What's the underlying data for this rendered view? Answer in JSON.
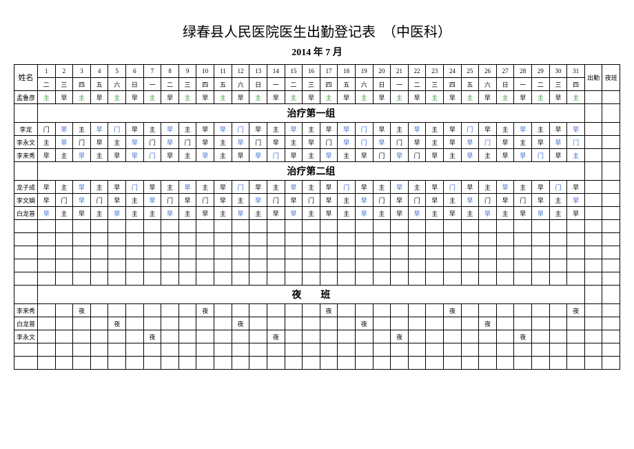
{
  "title": "绿春县人民医院医生出勤登记表　（中医科）",
  "subtitle": "2014 年 7 月",
  "nameHeader": "姓名",
  "cols": {
    "chuqin": "出勤",
    "yeban": "夜班"
  },
  "days": [
    "1",
    "2",
    "3",
    "4",
    "5",
    "6",
    "7",
    "8",
    "9",
    "10",
    "11",
    "12",
    "13",
    "14",
    "15",
    "16",
    "17",
    "18",
    "19",
    "20",
    "21",
    "22",
    "23",
    "24",
    "25",
    "26",
    "27",
    "28",
    "29",
    "30",
    "31"
  ],
  "weekdays": [
    "二",
    "三",
    "四",
    "五",
    "六",
    "日",
    "一",
    "二",
    "三",
    "四",
    "五",
    "六",
    "日",
    "一",
    "二",
    "三",
    "四",
    "五",
    "六",
    "日",
    "一",
    "二",
    "三",
    "四",
    "五",
    "六",
    "日",
    "一",
    "二",
    "三",
    "四"
  ],
  "sections": {
    "group1": "治疗第一组",
    "group2": "治疗第二组",
    "night": "夜　　班"
  },
  "rows": {
    "mengluyan": {
      "name": "孟鲁彦",
      "cells": [
        {
          "t": "主",
          "c": "green"
        },
        {
          "t": "早"
        },
        {
          "t": "主",
          "c": "green"
        },
        {
          "t": "早"
        },
        {
          "t": "主",
          "c": "green"
        },
        {
          "t": "早"
        },
        {
          "t": "主",
          "c": "green"
        },
        {
          "t": "早"
        },
        {
          "t": "主",
          "c": "green"
        },
        {
          "t": "早"
        },
        {
          "t": "主",
          "c": "green"
        },
        {
          "t": "早"
        },
        {
          "t": "主",
          "c": "green"
        },
        {
          "t": "早"
        },
        {
          "t": "主",
          "c": "green"
        },
        {
          "t": "早"
        },
        {
          "t": "主",
          "c": "green"
        },
        {
          "t": "早"
        },
        {
          "t": "主",
          "c": "green"
        },
        {
          "t": "早"
        },
        {
          "t": "主",
          "c": "green"
        },
        {
          "t": "早"
        },
        {
          "t": "主",
          "c": "green"
        },
        {
          "t": "早"
        },
        {
          "t": "主",
          "c": "green"
        },
        {
          "t": "早"
        },
        {
          "t": "主",
          "c": "green"
        },
        {
          "t": "早"
        },
        {
          "t": "主",
          "c": "green"
        },
        {
          "t": "早"
        },
        {
          "t": "主",
          "c": "green"
        }
      ]
    },
    "lilong": {
      "name": "李龙",
      "cells": [
        {
          "t": "门"
        },
        {
          "t": "早",
          "c": "blue"
        },
        {
          "t": "主"
        },
        {
          "t": "早",
          "c": "blue"
        },
        {
          "t": "门",
          "c": "blue"
        },
        {
          "t": "早"
        },
        {
          "t": "主"
        },
        {
          "t": "早",
          "c": "blue"
        },
        {
          "t": "主"
        },
        {
          "t": "早"
        },
        {
          "t": "早",
          "c": "blue"
        },
        {
          "t": "门",
          "c": "blue"
        },
        {
          "t": "早"
        },
        {
          "t": "主"
        },
        {
          "t": "早",
          "c": "blue"
        },
        {
          "t": "主"
        },
        {
          "t": "早"
        },
        {
          "t": "早",
          "c": "blue"
        },
        {
          "t": "门",
          "c": "blue"
        },
        {
          "t": "早"
        },
        {
          "t": "主"
        },
        {
          "t": "早",
          "c": "blue"
        },
        {
          "t": "主"
        },
        {
          "t": "早"
        },
        {
          "t": "门",
          "c": "blue"
        },
        {
          "t": "早"
        },
        {
          "t": "主"
        },
        {
          "t": "早",
          "c": "blue"
        },
        {
          "t": "主"
        },
        {
          "t": "早"
        },
        {
          "t": "早",
          "c": "blue"
        }
      ]
    },
    "liyongwen": {
      "name": "李永文",
      "cells": [
        {
          "t": "主"
        },
        {
          "t": "早",
          "c": "blue"
        },
        {
          "t": "门"
        },
        {
          "t": "早"
        },
        {
          "t": "主"
        },
        {
          "t": "早",
          "c": "blue"
        },
        {
          "t": "门"
        },
        {
          "t": "早",
          "c": "blue"
        },
        {
          "t": "门"
        },
        {
          "t": "早"
        },
        {
          "t": "主"
        },
        {
          "t": "早",
          "c": "blue"
        },
        {
          "t": "门"
        },
        {
          "t": "早"
        },
        {
          "t": "主"
        },
        {
          "t": "早"
        },
        {
          "t": "门"
        },
        {
          "t": "早",
          "c": "blue"
        },
        {
          "t": "门",
          "c": "blue"
        },
        {
          "t": "早",
          "c": "blue"
        },
        {
          "t": "门"
        },
        {
          "t": "早"
        },
        {
          "t": "主"
        },
        {
          "t": "早"
        },
        {
          "t": "早",
          "c": "blue"
        },
        {
          "t": "门",
          "c": "blue"
        },
        {
          "t": "早"
        },
        {
          "t": "主"
        },
        {
          "t": "早"
        },
        {
          "t": "早",
          "c": "blue"
        },
        {
          "t": "门",
          "c": "blue"
        }
      ]
    },
    "lilaixiu": {
      "name": "李来秀",
      "cells": [
        {
          "t": "早"
        },
        {
          "t": "主"
        },
        {
          "t": "早",
          "c": "blue"
        },
        {
          "t": "主"
        },
        {
          "t": "早"
        },
        {
          "t": "早",
          "c": "blue"
        },
        {
          "t": "门",
          "c": "blue"
        },
        {
          "t": "早"
        },
        {
          "t": "主"
        },
        {
          "t": "早",
          "c": "blue"
        },
        {
          "t": "主"
        },
        {
          "t": "早"
        },
        {
          "t": "早",
          "c": "blue"
        },
        {
          "t": "门",
          "c": "blue"
        },
        {
          "t": "早"
        },
        {
          "t": "主"
        },
        {
          "t": "早",
          "c": "blue"
        },
        {
          "t": "主"
        },
        {
          "t": "早"
        },
        {
          "t": "门"
        },
        {
          "t": "早",
          "c": "blue"
        },
        {
          "t": "门"
        },
        {
          "t": "早"
        },
        {
          "t": "主"
        },
        {
          "t": "早",
          "c": "blue"
        },
        {
          "t": "主"
        },
        {
          "t": "早"
        },
        {
          "t": "早",
          "c": "blue"
        },
        {
          "t": "门",
          "c": "blue"
        },
        {
          "t": "早"
        },
        {
          "t": "主",
          "c": "blue"
        }
      ]
    },
    "longzicheng": {
      "name": "龙子成",
      "cells": [
        {
          "t": "早"
        },
        {
          "t": "主"
        },
        {
          "t": "早",
          "c": "blue"
        },
        {
          "t": "主"
        },
        {
          "t": "早"
        },
        {
          "t": "门",
          "c": "blue"
        },
        {
          "t": "早"
        },
        {
          "t": "主"
        },
        {
          "t": "早",
          "c": "blue"
        },
        {
          "t": "主"
        },
        {
          "t": "早"
        },
        {
          "t": "门",
          "c": "blue"
        },
        {
          "t": "早"
        },
        {
          "t": "主"
        },
        {
          "t": "早",
          "c": "blue"
        },
        {
          "t": "主"
        },
        {
          "t": "早"
        },
        {
          "t": "门",
          "c": "blue"
        },
        {
          "t": "早"
        },
        {
          "t": "主"
        },
        {
          "t": "早",
          "c": "blue"
        },
        {
          "t": "主"
        },
        {
          "t": "早"
        },
        {
          "t": "门",
          "c": "blue"
        },
        {
          "t": "早"
        },
        {
          "t": "主"
        },
        {
          "t": "早",
          "c": "blue"
        },
        {
          "t": "主"
        },
        {
          "t": "早"
        },
        {
          "t": "门",
          "c": "blue"
        },
        {
          "t": "早"
        }
      ]
    },
    "liwenjuan": {
      "name": "李文娟",
      "cells": [
        {
          "t": "早"
        },
        {
          "t": "门"
        },
        {
          "t": "早",
          "c": "blue"
        },
        {
          "t": "门"
        },
        {
          "t": "早"
        },
        {
          "t": "主"
        },
        {
          "t": "早",
          "c": "blue"
        },
        {
          "t": "门"
        },
        {
          "t": "早"
        },
        {
          "t": "门"
        },
        {
          "t": "早"
        },
        {
          "t": "主"
        },
        {
          "t": "早",
          "c": "blue"
        },
        {
          "t": "门"
        },
        {
          "t": "早"
        },
        {
          "t": "门"
        },
        {
          "t": "早"
        },
        {
          "t": "主"
        },
        {
          "t": "早",
          "c": "blue"
        },
        {
          "t": "门"
        },
        {
          "t": "早"
        },
        {
          "t": "门"
        },
        {
          "t": "早"
        },
        {
          "t": "主"
        },
        {
          "t": "早",
          "c": "blue"
        },
        {
          "t": "门"
        },
        {
          "t": "早"
        },
        {
          "t": "门"
        },
        {
          "t": "早"
        },
        {
          "t": "主"
        },
        {
          "t": "早",
          "c": "blue"
        }
      ]
    },
    "bailongpu": {
      "name": "白龙普",
      "cells": [
        {
          "t": "早",
          "c": "blue"
        },
        {
          "t": "主"
        },
        {
          "t": "早"
        },
        {
          "t": "主"
        },
        {
          "t": "早",
          "c": "blue"
        },
        {
          "t": "主"
        },
        {
          "t": "主"
        },
        {
          "t": "早",
          "c": "blue"
        },
        {
          "t": "主"
        },
        {
          "t": "早"
        },
        {
          "t": "主"
        },
        {
          "t": "早",
          "c": "blue"
        },
        {
          "t": "主"
        },
        {
          "t": "早"
        },
        {
          "t": "早",
          "c": "blue"
        },
        {
          "t": "主"
        },
        {
          "t": "早"
        },
        {
          "t": "主"
        },
        {
          "t": "早",
          "c": "blue"
        },
        {
          "t": "主"
        },
        {
          "t": "早"
        },
        {
          "t": "早",
          "c": "blue"
        },
        {
          "t": "主"
        },
        {
          "t": "早"
        },
        {
          "t": "主"
        },
        {
          "t": "早",
          "c": "blue"
        },
        {
          "t": "主"
        },
        {
          "t": "早"
        },
        {
          "t": "早",
          "c": "blue"
        },
        {
          "t": "主"
        },
        {
          "t": "早"
        }
      ]
    },
    "night_lilaixiu": {
      "name": "李来秀",
      "cells": [
        {
          "t": ""
        },
        {
          "t": ""
        },
        {
          "t": "夜"
        },
        {
          "t": ""
        },
        {
          "t": ""
        },
        {
          "t": ""
        },
        {
          "t": ""
        },
        {
          "t": ""
        },
        {
          "t": ""
        },
        {
          "t": "夜"
        },
        {
          "t": ""
        },
        {
          "t": ""
        },
        {
          "t": ""
        },
        {
          "t": ""
        },
        {
          "t": ""
        },
        {
          "t": ""
        },
        {
          "t": "夜"
        },
        {
          "t": ""
        },
        {
          "t": ""
        },
        {
          "t": ""
        },
        {
          "t": ""
        },
        {
          "t": ""
        },
        {
          "t": ""
        },
        {
          "t": "夜"
        },
        {
          "t": ""
        },
        {
          "t": ""
        },
        {
          "t": ""
        },
        {
          "t": ""
        },
        {
          "t": ""
        },
        {
          "t": ""
        },
        {
          "t": "夜"
        }
      ]
    },
    "night_bailongpu": {
      "name": "白龙普",
      "cells": [
        {
          "t": ""
        },
        {
          "t": ""
        },
        {
          "t": ""
        },
        {
          "t": ""
        },
        {
          "t": "夜"
        },
        {
          "t": ""
        },
        {
          "t": ""
        },
        {
          "t": ""
        },
        {
          "t": ""
        },
        {
          "t": ""
        },
        {
          "t": ""
        },
        {
          "t": "夜"
        },
        {
          "t": ""
        },
        {
          "t": ""
        },
        {
          "t": ""
        },
        {
          "t": ""
        },
        {
          "t": ""
        },
        {
          "t": ""
        },
        {
          "t": "夜"
        },
        {
          "t": ""
        },
        {
          "t": ""
        },
        {
          "t": ""
        },
        {
          "t": ""
        },
        {
          "t": ""
        },
        {
          "t": ""
        },
        {
          "t": "夜"
        },
        {
          "t": ""
        },
        {
          "t": ""
        },
        {
          "t": ""
        },
        {
          "t": ""
        },
        {
          "t": ""
        }
      ]
    },
    "night_liyongwen": {
      "name": "李永文",
      "cells": [
        {
          "t": ""
        },
        {
          "t": ""
        },
        {
          "t": ""
        },
        {
          "t": ""
        },
        {
          "t": ""
        },
        {
          "t": ""
        },
        {
          "t": "夜"
        },
        {
          "t": ""
        },
        {
          "t": ""
        },
        {
          "t": ""
        },
        {
          "t": ""
        },
        {
          "t": ""
        },
        {
          "t": ""
        },
        {
          "t": "夜"
        },
        {
          "t": ""
        },
        {
          "t": ""
        },
        {
          "t": ""
        },
        {
          "t": ""
        },
        {
          "t": ""
        },
        {
          "t": ""
        },
        {
          "t": "夜"
        },
        {
          "t": ""
        },
        {
          "t": ""
        },
        {
          "t": ""
        },
        {
          "t": ""
        },
        {
          "t": ""
        },
        {
          "t": ""
        },
        {
          "t": "夜"
        },
        {
          "t": ""
        },
        {
          "t": ""
        },
        {
          "t": ""
        }
      ]
    }
  },
  "colors": {
    "blue": "#3366cc",
    "green": "#339933"
  }
}
